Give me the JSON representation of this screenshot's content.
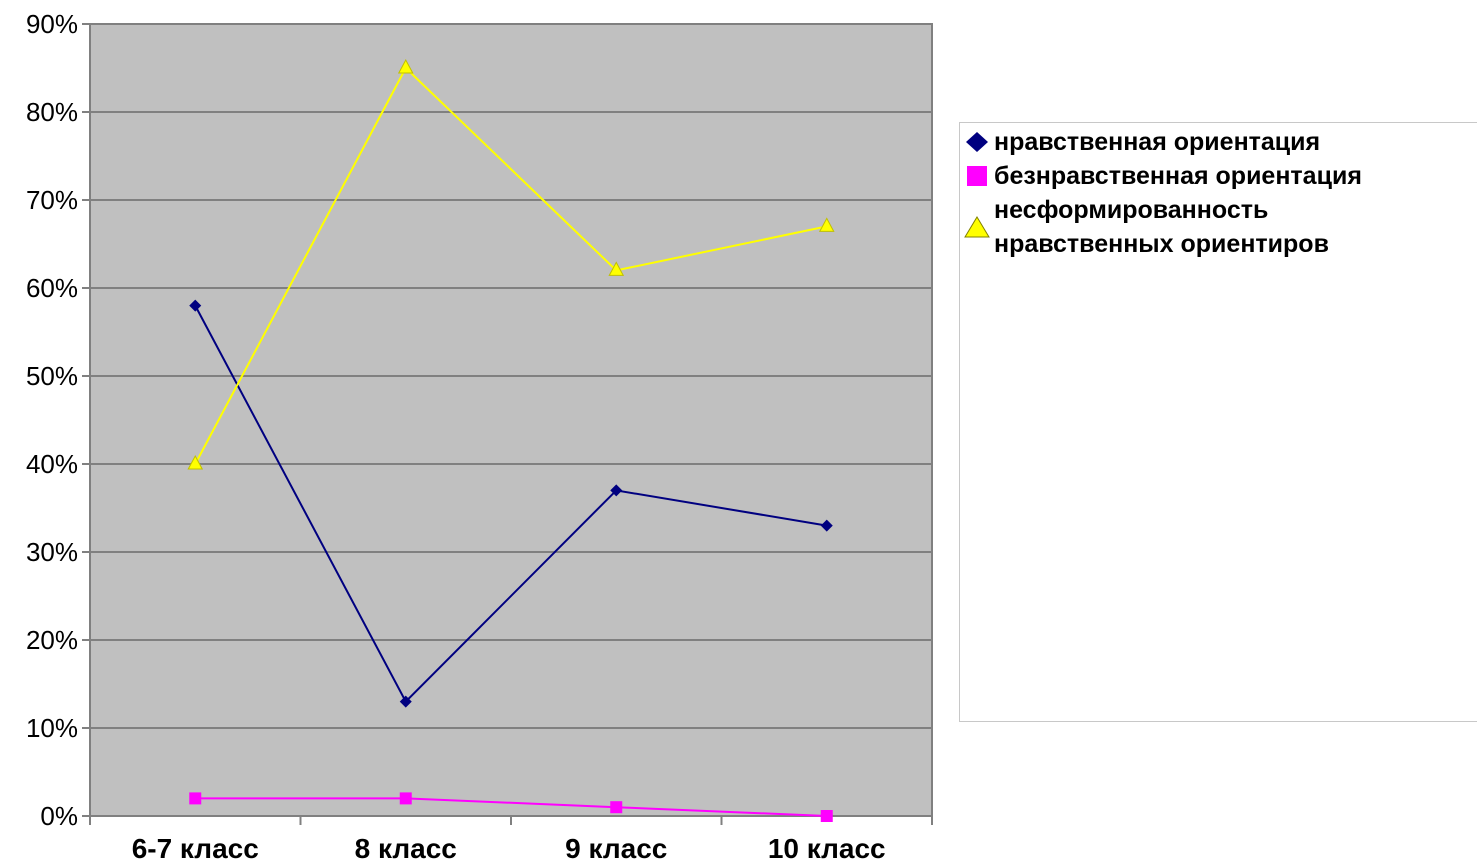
{
  "chart_data": {
    "type": "line",
    "categories": [
      "6-7 класс",
      "8 класс",
      "9 класс",
      "10 класс"
    ],
    "series": [
      {
        "name": "нравственная ориентация",
        "values": [
          58,
          13,
          37,
          33
        ],
        "color": "#000080",
        "marker": "diamond"
      },
      {
        "name": "безнравственная ориентация",
        "values": [
          2,
          2,
          1,
          0
        ],
        "color": "#ff00ff",
        "marker": "square"
      },
      {
        "name": "несформированность нравственных ориентиров",
        "values": [
          40,
          85,
          62,
          67
        ],
        "color": "#ffff00",
        "marker": "triangle"
      }
    ],
    "y_ticks": [
      "0%",
      "10%",
      "20%",
      "30%",
      "40%",
      "50%",
      "60%",
      "70%",
      "80%",
      "90%"
    ],
    "ylim": [
      0,
      90
    ],
    "y_unit": "%",
    "grid": true,
    "plot_background": "#c0c0c0",
    "legend_placement": "right"
  },
  "legend": {
    "items": [
      {
        "label": "нравственная ориентация",
        "color": "#000080",
        "marker": "diamond"
      },
      {
        "label": "безнравственная ориентация",
        "color": "#ff00ff",
        "marker": "square"
      },
      {
        "label_lines": [
          "несформированность",
          "нравственных ориентиров"
        ],
        "color": "#ffff00",
        "marker": "triangle"
      }
    ]
  }
}
